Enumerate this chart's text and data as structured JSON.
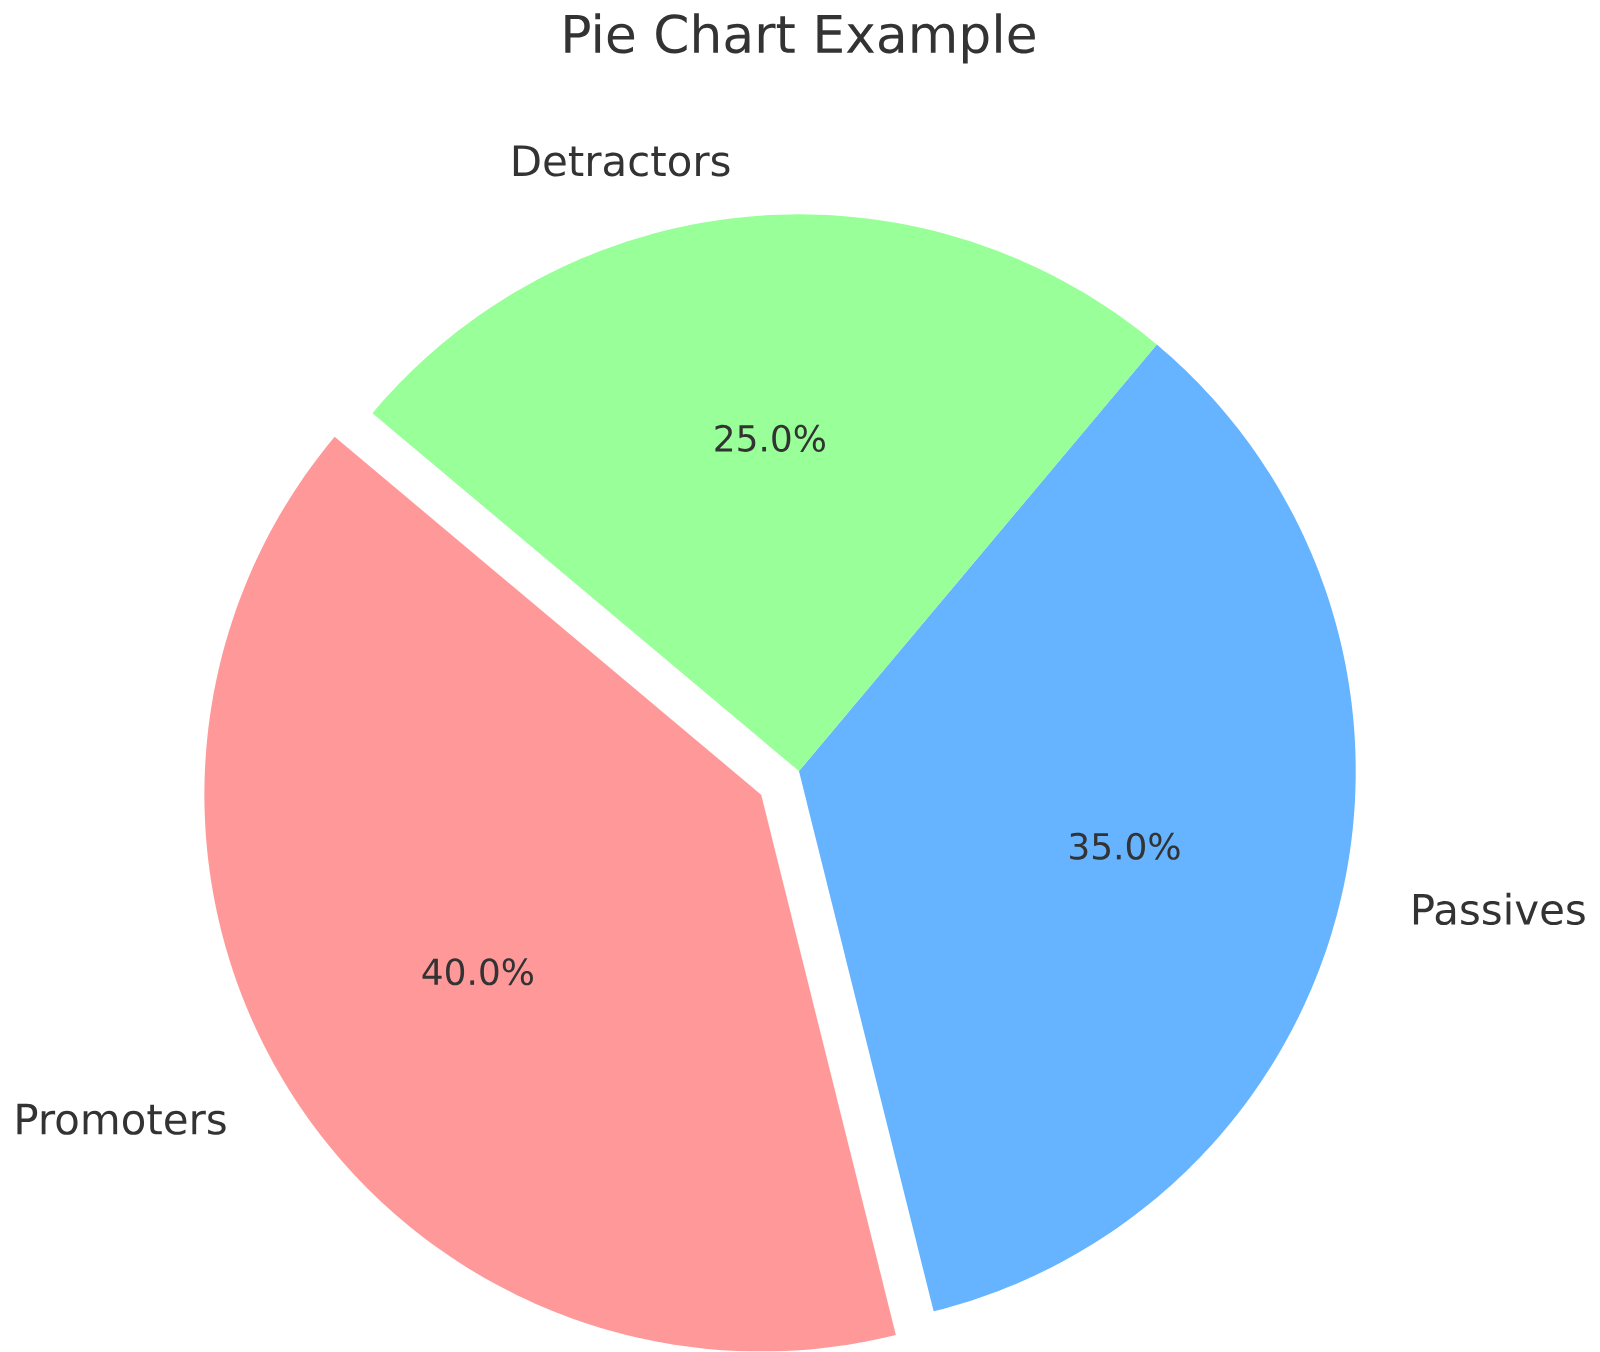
{
  "chart_data": {
    "type": "pie",
    "title": "Pie Chart Example",
    "categories": [
      "Promoters",
      "Passives",
      "Detractors"
    ],
    "values": [
      40,
      35,
      25
    ],
    "colors": [
      "#ff9999",
      "#66b3ff",
      "#99ff99"
    ],
    "value_labels": [
      "40.0%",
      "35.0%",
      "25.0%"
    ]
  }
}
